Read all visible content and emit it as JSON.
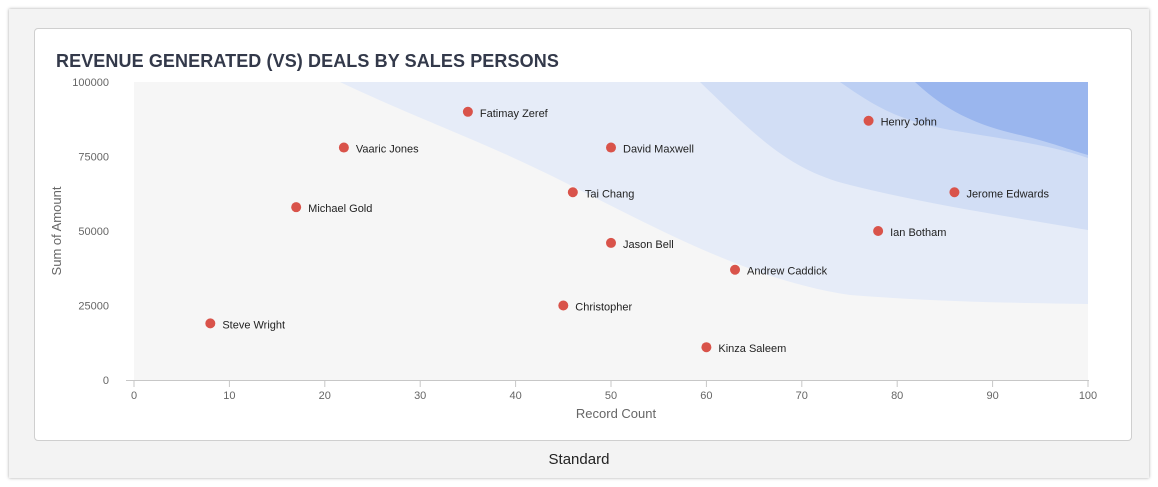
{
  "card": {
    "title": "REVENUE GENERATED (VS) DEALS BY SALES PERSONS"
  },
  "footer": {
    "label": "Standard"
  },
  "colors": {
    "point": "#d9534a",
    "plot_bg": "#f6f6f6",
    "band1": "#e6ecf8",
    "band2": "#d2def5",
    "band3": "#bccff3",
    "band4": "#9ab6ee"
  },
  "chart_data": {
    "type": "scatter",
    "title": "REVENUE GENERATED (VS) DEALS BY SALES PERSONS",
    "xlabel": "Record Count",
    "ylabel": "Sum of Amount",
    "xlim": [
      0,
      100
    ],
    "ylim": [
      0,
      100000
    ],
    "xticks": [
      "0",
      "10",
      "20",
      "30",
      "40",
      "50",
      "60",
      "70",
      "80",
      "90",
      "100"
    ],
    "yticks": [
      "0",
      "25000",
      "50000",
      "75000",
      "100000"
    ],
    "points": [
      {
        "name": "Fatimay Zeref",
        "x": 35,
        "y": 90000
      },
      {
        "name": "Henry John",
        "x": 77,
        "y": 87000
      },
      {
        "name": "Vaaric Jones",
        "x": 22,
        "y": 78000
      },
      {
        "name": "David Maxwell",
        "x": 50,
        "y": 78000
      },
      {
        "name": "Tai Chang",
        "x": 46,
        "y": 63000
      },
      {
        "name": "Jerome Edwards",
        "x": 86,
        "y": 63000
      },
      {
        "name": "Michael Gold",
        "x": 17,
        "y": 58000
      },
      {
        "name": "Ian Botham",
        "x": 78,
        "y": 50000
      },
      {
        "name": "Jason Bell",
        "x": 50,
        "y": 46000
      },
      {
        "name": "Andrew Caddick",
        "x": 63,
        "y": 37000
      },
      {
        "name": "Christopher",
        "x": 45,
        "y": 25000
      },
      {
        "name": "Steve Wright",
        "x": 8,
        "y": 19000
      },
      {
        "name": "Kinza Saleem",
        "x": 60,
        "y": 11000
      }
    ]
  }
}
